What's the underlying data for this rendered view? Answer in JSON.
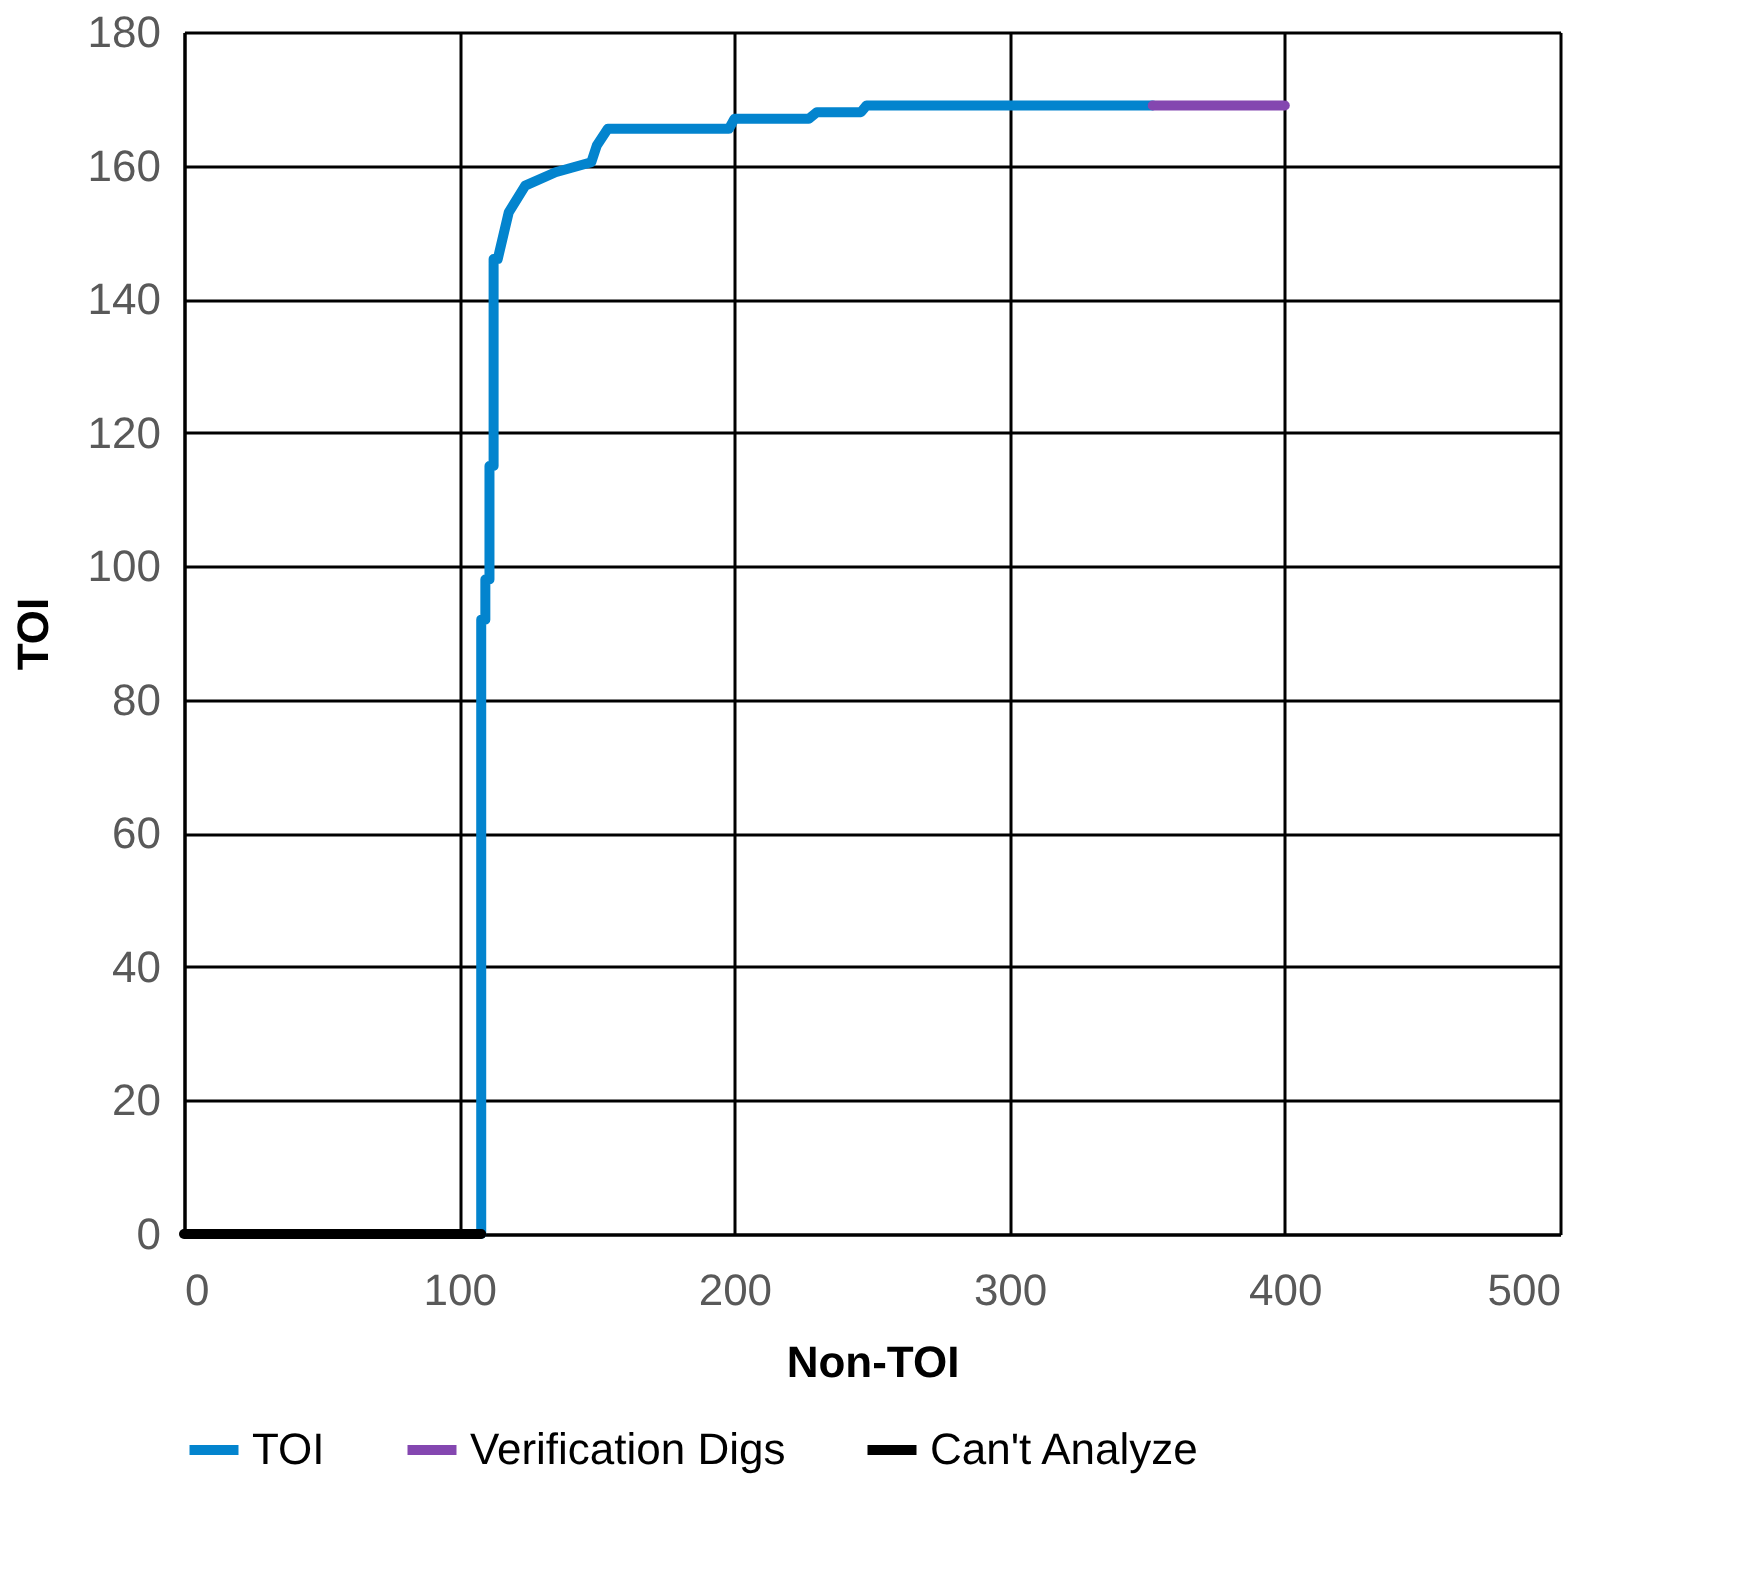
{
  "chart_data": {
    "type": "line",
    "xlabel": "Non-TOI",
    "ylabel": "TOI",
    "xlim": [
      0,
      500
    ],
    "xticks": [
      0,
      100,
      200,
      300,
      400,
      500
    ],
    "ylim": [
      0,
      180
    ],
    "yticks": [
      0,
      20,
      40,
      60,
      80,
      100,
      120,
      140,
      160,
      180
    ],
    "grid": true,
    "legend": "bottom",
    "marker": "none",
    "line_style": "solid",
    "series": [
      {
        "name": "TOI",
        "color": "#0384ce",
        "x": [
          108,
          108,
          109.5,
          109.5,
          111,
          111,
          112.5,
          112.5,
          114,
          118,
          124,
          135,
          148,
          150,
          154,
          198,
          200,
          227,
          230,
          246,
          248,
          352
        ],
        "values": [
          0,
          92,
          92,
          98,
          98,
          115,
          115,
          146,
          146,
          153,
          157,
          159,
          160.5,
          163,
          165.5,
          165.5,
          167,
          167,
          168,
          168,
          169,
          169
        ]
      },
      {
        "name": "Verification Digs",
        "color": "#8447b0",
        "x": [
          352,
          400
        ],
        "values": [
          169,
          169
        ]
      },
      {
        "name": "Can't Analyze",
        "color": "#000000",
        "x": [
          0,
          108
        ],
        "values": [
          0,
          0
        ]
      }
    ]
  }
}
